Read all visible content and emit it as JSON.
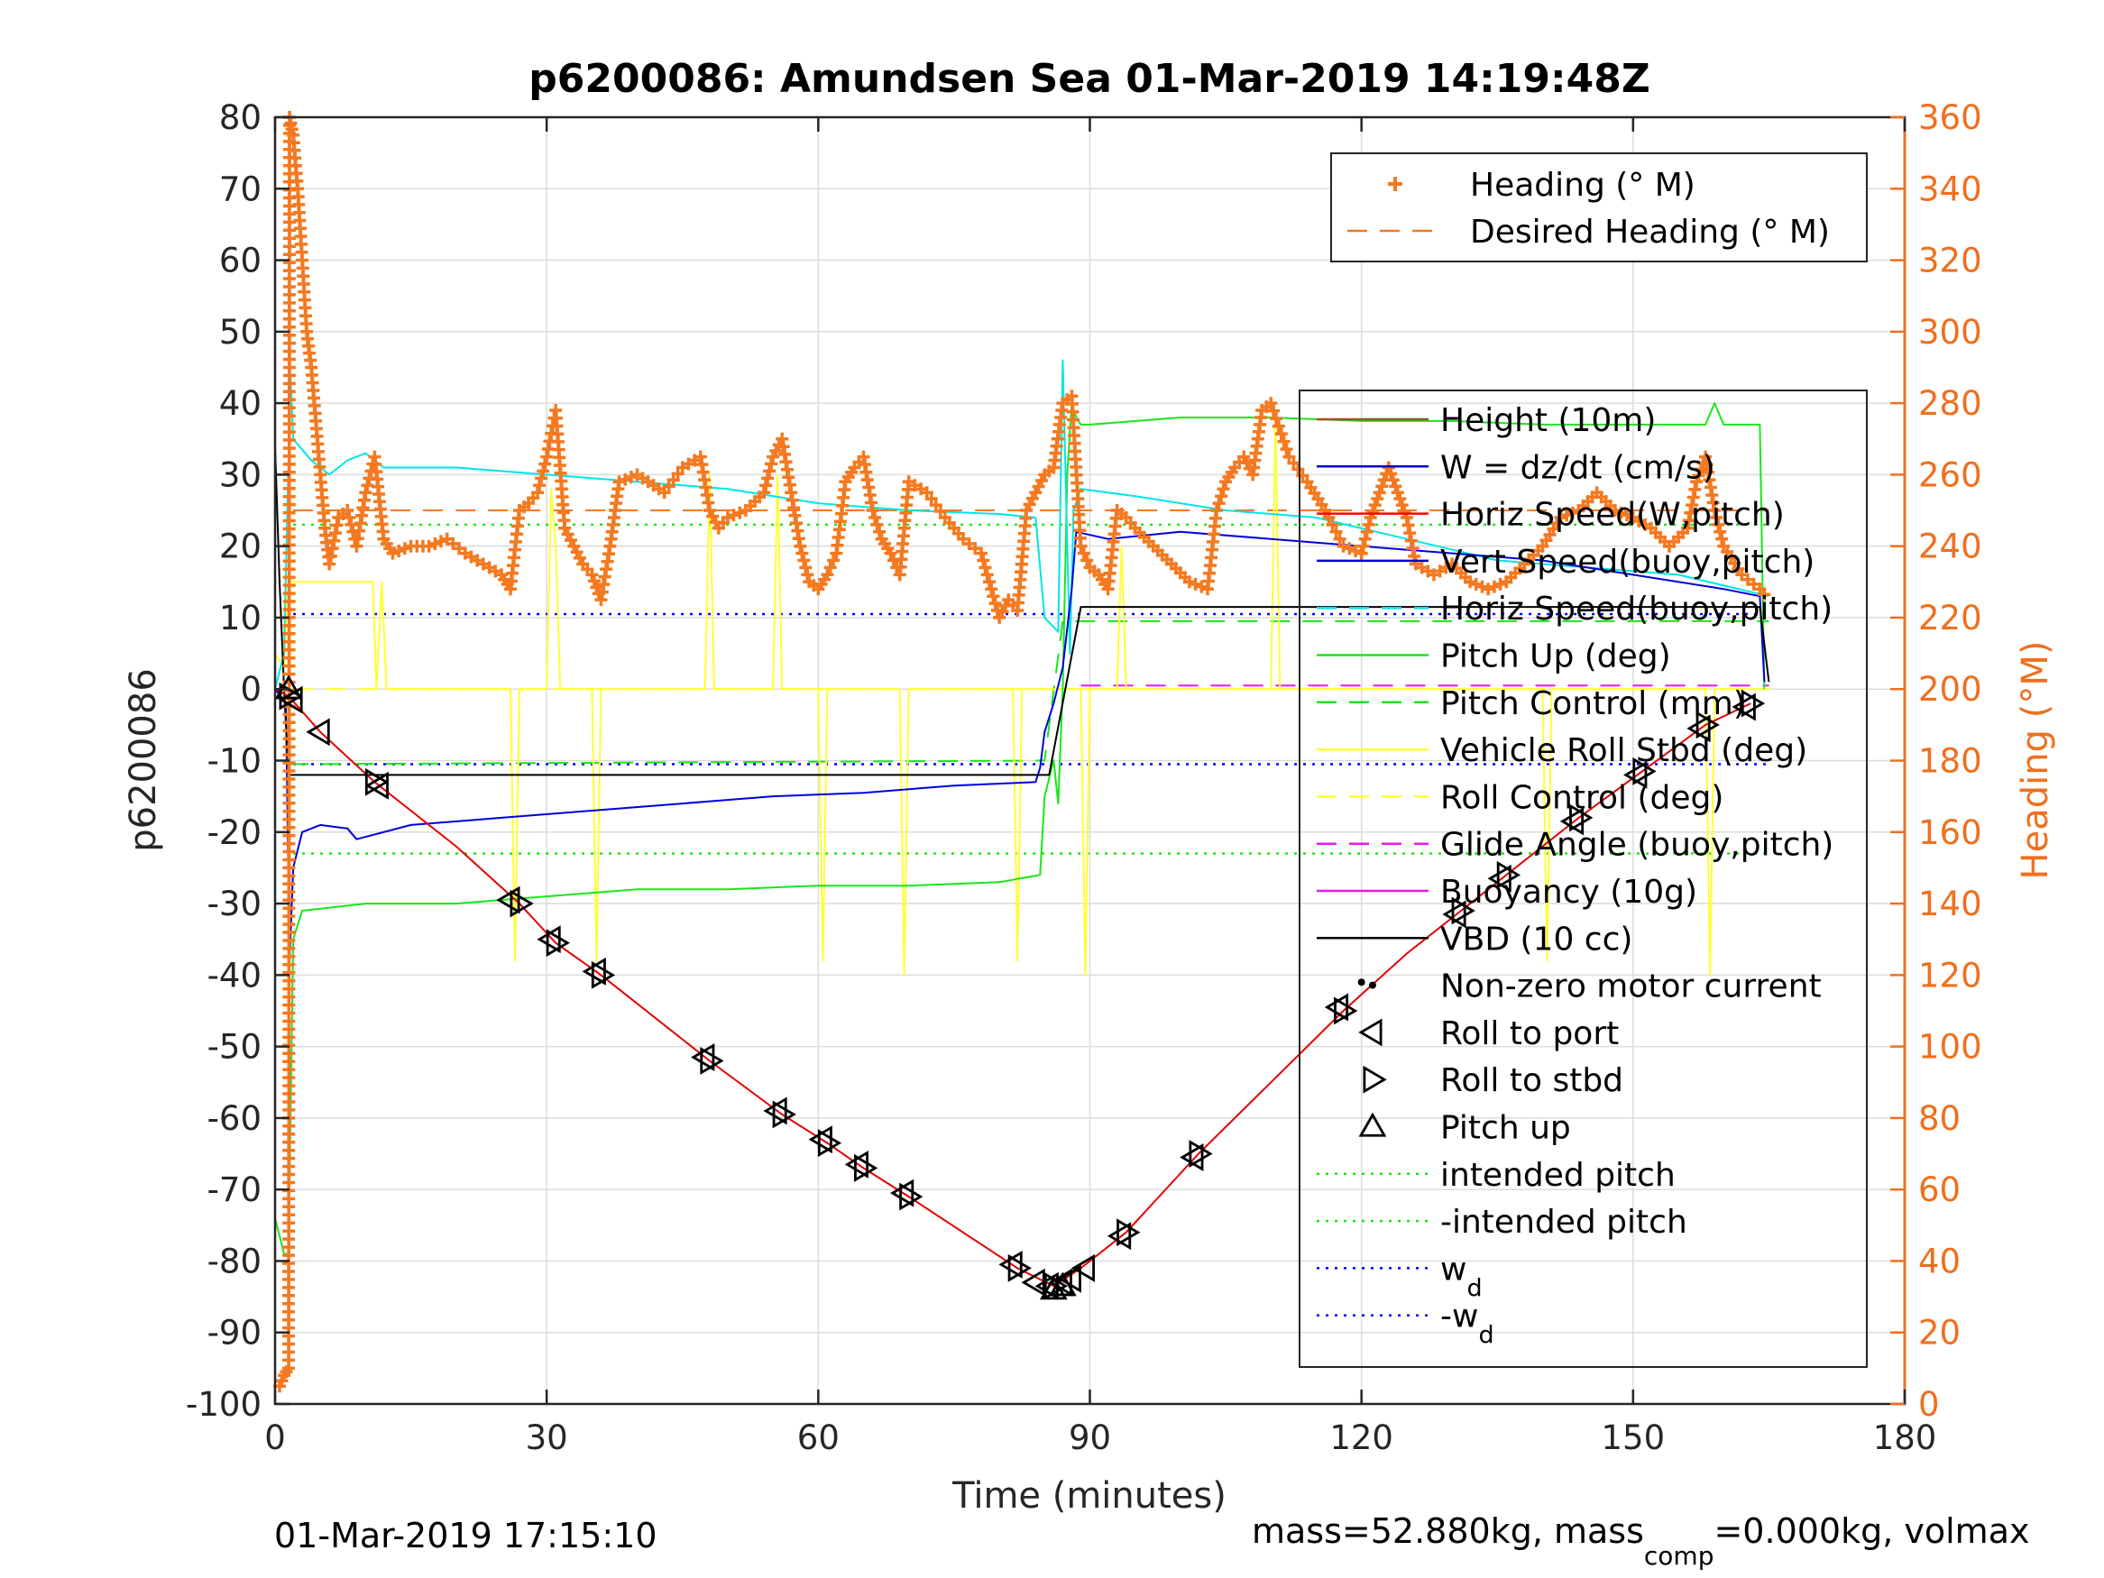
{
  "chart_data": {
    "type": "line",
    "title": "p6200086: Amundsen Sea 01-Mar-2019 14:19:48Z",
    "xlabel": "Time (minutes)",
    "ylabel": "p6200086",
    "ylabel_right": "Heading (°M)",
    "xlim": [
      0,
      180
    ],
    "ylim": [
      -100,
      80
    ],
    "ylim_right": [
      0,
      360
    ],
    "x_ticks": [
      0,
      30,
      60,
      90,
      120,
      150,
      180
    ],
    "y_ticks": [
      80,
      70,
      60,
      50,
      40,
      30,
      20,
      10,
      0,
      -10,
      -20,
      -30,
      -40,
      -50,
      -60,
      -70,
      -80,
      -90,
      -100
    ],
    "y_ticks_right": [
      360,
      340,
      320,
      300,
      280,
      260,
      240,
      220,
      200,
      180,
      160,
      140,
      120,
      100,
      80,
      60,
      40,
      20,
      0
    ],
    "grid": true,
    "legend_top": [
      {
        "label": "Heading (° M)",
        "color": "#f47920",
        "style": "plus"
      },
      {
        "label": "Desired Heading (° M)",
        "color": "#f47920",
        "style": "dashed"
      }
    ],
    "legend_main": [
      {
        "label": "Height (10m)",
        "color": "#a05020",
        "style": "solid"
      },
      {
        "label": "W = dz/dt (cm/s)",
        "color": "#0000cc",
        "style": "solid"
      },
      {
        "label": "Horiz Speed(W,pitch)",
        "color": "#ff0000",
        "style": "solid"
      },
      {
        "label": "Vert Speed(buoy,pitch)",
        "color": "#0000cc",
        "style": "solid"
      },
      {
        "label": "Horiz Speed(buoy,pitch)",
        "color": "#00e5e5",
        "style": "dashed"
      },
      {
        "label": "Pitch Up (deg)",
        "color": "#19e619",
        "style": "solid"
      },
      {
        "label": "Pitch Control (mm)",
        "color": "#19e619",
        "style": "dashed"
      },
      {
        "label": "Vehicle Roll Stbd (deg)",
        "color": "#ffff33",
        "style": "solid"
      },
      {
        "label": "Roll Control (deg)",
        "color": "#ffff33",
        "style": "dashed"
      },
      {
        "label": "Glide Angle (buoy,pitch)",
        "color": "#e619e6",
        "style": "dashed"
      },
      {
        "label": "Buoyancy (10g)",
        "color": "#e619e6",
        "style": "solid"
      },
      {
        "label": "VBD (10 cc)",
        "color": "#000000",
        "style": "solid"
      },
      {
        "label": "Non-zero motor current",
        "color": "#000000",
        "style": "dot"
      },
      {
        "label": "Roll to port",
        "color": "#000000",
        "style": "tri-left"
      },
      {
        "label": "Roll to stbd",
        "color": "#000000",
        "style": "tri-right"
      },
      {
        "label": "Pitch up",
        "color": "#000000",
        "style": "tri-up"
      },
      {
        "label": "intended pitch",
        "color": "#19e619",
        "style": "dotted"
      },
      {
        "label": "-intended pitch",
        "color": "#19e619",
        "style": "dotted"
      },
      {
        "label": "w",
        "sub": "d",
        "color": "#0000ff",
        "style": "dotted"
      },
      {
        "label": "-w",
        "sub": "d",
        "color": "#0000ff",
        "style": "dotted"
      }
    ],
    "series": [
      {
        "name": "Height (10m)",
        "color": "#e60000",
        "x": [
          0,
          1.5,
          5,
          11,
          20,
          27,
          31,
          36,
          48,
          56,
          61,
          65,
          70,
          82,
          86,
          89,
          94,
          102,
          110,
          118,
          125,
          131,
          136,
          144,
          151,
          158,
          163
        ],
        "y": [
          0,
          -1,
          -6,
          -13,
          -22,
          -30,
          -35.5,
          -40,
          -52,
          -59.5,
          -63.5,
          -67,
          -71,
          -81,
          -83.5,
          -81,
          -76,
          -65,
          -55,
          -45,
          -37,
          -31,
          -26,
          -18,
          -11.5,
          -5,
          -2
        ]
      },
      {
        "name": "W = dz/dt (cm/s)",
        "color": "#0000dd",
        "x": [
          0,
          1.2,
          1.6,
          2,
          3,
          5,
          8,
          9,
          15,
          25,
          35,
          45,
          55,
          65,
          75,
          84,
          84.5,
          85,
          86,
          87,
          88,
          88.5,
          92,
          100,
          110,
          120,
          130,
          140,
          150,
          160,
          164,
          164.5
        ],
        "y": [
          0,
          -2,
          -38,
          -25,
          -20,
          -19,
          -19.5,
          -21,
          -19,
          -18,
          -17,
          -16,
          -15,
          -14.5,
          -13.5,
          -13,
          -11,
          -6,
          -2,
          3,
          14,
          22,
          21,
          22,
          21,
          20,
          19,
          18,
          16,
          14,
          13,
          1
        ]
      },
      {
        "name": "Horiz Speed(buoy,pitch)",
        "color": "#00e5e5",
        "x": [
          0,
          1,
          1.7,
          2,
          4,
          6,
          8,
          10,
          12,
          20,
          30,
          40,
          50,
          60,
          70,
          80,
          84,
          85,
          86.5,
          87,
          87.8,
          88.2,
          89,
          95,
          105,
          115,
          125,
          135,
          145,
          155,
          165
        ],
        "y": [
          0,
          5,
          44,
          35,
          32,
          30,
          32,
          33,
          31,
          31,
          30,
          29,
          28,
          26,
          25,
          24.5,
          24,
          10,
          8,
          46,
          5,
          25,
          28,
          27,
          25,
          24,
          21,
          18,
          17,
          16,
          13
        ]
      },
      {
        "name": "Pitch Up (deg)",
        "color": "#19e619",
        "x": [
          0,
          1,
          1.5,
          1.7,
          2,
          3,
          10,
          20,
          30,
          40,
          50,
          60,
          70,
          80,
          84.5,
          85,
          86,
          86.5,
          87,
          87.5,
          88,
          88.5,
          89,
          90,
          100,
          110,
          120,
          130,
          140,
          150,
          158,
          159,
          160,
          164,
          164.5
        ],
        "y": [
          -74,
          -79,
          -79,
          -60,
          -35,
          -31,
          -30,
          -30,
          -29,
          -28,
          -28,
          -27.5,
          -27.5,
          -27,
          -26,
          -15,
          -10,
          -16,
          0,
          30,
          40,
          38,
          37,
          37,
          38,
          38,
          37.5,
          37.5,
          37,
          37,
          37,
          40,
          37,
          37,
          0
        ]
      },
      {
        "name": "Vehicle Roll Stbd (deg)",
        "color": "#ffff33",
        "x": [
          0,
          1,
          1.5,
          2,
          3,
          5,
          10,
          10.8,
          11.2,
          11.8,
          12.3,
          20,
          26,
          26.5,
          27,
          27.5,
          30,
          30.5,
          31,
          31.5,
          35,
          35.5,
          36,
          36.5,
          45,
          47.5,
          48,
          48.5,
          55,
          55.5,
          56,
          56.5,
          60,
          60.5,
          61,
          61.5,
          69,
          69.5,
          70,
          70.5,
          80,
          81.5,
          82,
          82.5,
          83,
          85,
          86,
          87,
          89,
          89.5,
          90,
          93,
          93.5,
          94,
          94.5,
          110,
          110.5,
          111,
          111.5,
          140,
          140.5,
          141,
          141.5,
          158,
          158.5,
          159,
          159.5,
          164,
          165
        ],
        "y": [
          5,
          3,
          16,
          15,
          15,
          15,
          15,
          15,
          0,
          15,
          0,
          0,
          0,
          -38,
          0,
          0,
          0,
          28,
          20,
          0,
          0,
          -38,
          0,
          0,
          0,
          0,
          30,
          0,
          0,
          30,
          0,
          0,
          0,
          -38,
          0,
          0,
          0,
          -40,
          0,
          0,
          0,
          0,
          -38,
          0,
          0,
          0,
          0,
          0,
          0,
          -40,
          0,
          0,
          20,
          0,
          0,
          0,
          38,
          0,
          0,
          0,
          -38,
          0,
          0,
          0,
          -40,
          0,
          0,
          0,
          0
        ]
      },
      {
        "name": "VBD (10 cc)",
        "color": "#000000",
        "x": [
          0,
          0.5,
          1,
          1.5,
          2,
          4,
          20,
          40,
          60,
          80,
          85.5,
          89,
          92,
          110,
          130,
          150,
          164,
          165
        ],
        "y": [
          34,
          15,
          0,
          -12,
          -12,
          -12,
          -12,
          -12,
          -12,
          -12,
          -12,
          11.5,
          11.5,
          11.5,
          11.5,
          11.5,
          11.5,
          1
        ]
      },
      {
        "name": "Glide Angle (buoy,pitch)",
        "color": "#e619e6",
        "x": [
          89,
          165
        ],
        "y": [
          0.5,
          0.5
        ]
      },
      {
        "name": "Pitch Control (mm)",
        "color": "#19e619",
        "x": [
          1.5,
          85,
          87,
          165
        ],
        "y": [
          -10.5,
          -10,
          9.5,
          9.5
        ]
      },
      {
        "name": "Roll Control (deg)",
        "color": "#ffff33",
        "x": [
          2,
          165
        ],
        "y": [
          0,
          0
        ]
      }
    ],
    "reference_lines": [
      {
        "name": "intended pitch",
        "y": 23,
        "color": "#19e619"
      },
      {
        "name": "-intended pitch",
        "y": -23,
        "color": "#19e619"
      },
      {
        "name": "wd",
        "y": 10.5,
        "color": "#0000ff"
      },
      {
        "name": "-wd",
        "y": -10.5,
        "color": "#0000ff"
      }
    ],
    "desired_heading_right": 250,
    "heading_right": {
      "x": [
        0.5,
        1,
        1.5,
        1.6,
        2,
        2.5,
        3,
        3.5,
        4,
        4.5,
        5,
        5.5,
        6,
        7,
        8,
        9,
        10,
        11,
        12,
        13,
        15,
        17,
        19,
        21,
        23,
        25,
        26,
        27,
        28,
        29,
        30,
        31,
        32,
        33,
        34,
        35,
        36,
        37,
        38,
        40,
        43,
        45,
        47,
        48,
        49,
        50,
        52,
        54,
        55,
        56,
        57,
        58,
        59,
        60,
        61,
        62,
        63,
        64,
        65,
        66,
        67,
        68,
        69,
        70,
        72,
        74,
        76,
        78,
        80,
        81,
        82,
        83,
        84,
        85,
        86,
        87,
        88,
        89,
        90,
        91,
        92,
        93,
        94,
        95,
        97,
        99,
        101,
        103,
        104,
        105,
        106,
        107,
        108,
        109,
        110,
        112,
        114,
        116,
        118,
        120,
        121,
        122,
        123,
        124,
        125,
        126,
        128,
        130,
        132,
        134,
        136,
        138,
        140,
        142,
        144,
        146,
        148,
        150,
        152,
        154,
        156,
        157,
        158,
        159,
        160,
        162,
        164,
        165
      ],
      "y": [
        5,
        8,
        10,
        360,
        355,
        340,
        320,
        300,
        290,
        275,
        260,
        245,
        235,
        248,
        250,
        240,
        255,
        265,
        242,
        238,
        240,
        240,
        242,
        238,
        235,
        232,
        228,
        250,
        252,
        255,
        265,
        278,
        245,
        240,
        235,
        232,
        225,
        240,
        258,
        260,
        255,
        262,
        265,
        250,
        245,
        248,
        250,
        255,
        265,
        270,
        255,
        240,
        230,
        228,
        232,
        238,
        258,
        262,
        265,
        250,
        242,
        238,
        232,
        258,
        255,
        248,
        242,
        238,
        220,
        225,
        222,
        250,
        255,
        260,
        262,
        280,
        282,
        240,
        234,
        232,
        228,
        250,
        248,
        245,
        240,
        235,
        230,
        228,
        250,
        258,
        262,
        265,
        260,
        278,
        280,
        265,
        258,
        250,
        240,
        238,
        248,
        255,
        262,
        255,
        248,
        235,
        232,
        235,
        230,
        228,
        230,
        235,
        240,
        248,
        250,
        255,
        250,
        248,
        245,
        240,
        245,
        258,
        265,
        250,
        240,
        232,
        228,
        225
      ]
    },
    "markers": {
      "tri_right": [
        [
          1.5,
          -1
        ],
        [
          11,
          -13
        ],
        [
          27,
          -30
        ],
        [
          31,
          -35.5
        ],
        [
          36,
          -40
        ],
        [
          48,
          -52
        ],
        [
          56,
          -59.5
        ],
        [
          61,
          -63.5
        ],
        [
          65,
          -67
        ],
        [
          70,
          -71
        ],
        [
          82,
          -81
        ],
        [
          86,
          -83.5
        ],
        [
          94,
          -76
        ],
        [
          102,
          -65
        ],
        [
          118,
          -45
        ],
        [
          131,
          -31
        ],
        [
          136,
          -26
        ],
        [
          144,
          -18
        ],
        [
          151,
          -11.5
        ],
        [
          158,
          -5
        ],
        [
          163,
          -2
        ]
      ],
      "tri_left": [
        [
          2,
          -1.5
        ],
        [
          5,
          -6
        ],
        [
          11.5,
          -13.5
        ],
        [
          26,
          -29.5
        ],
        [
          30.5,
          -35
        ],
        [
          35.5,
          -39.5
        ],
        [
          47.5,
          -51.5
        ],
        [
          55.5,
          -59
        ],
        [
          60.5,
          -63
        ],
        [
          64.5,
          -66.5
        ],
        [
          69.5,
          -70.5
        ],
        [
          81.5,
          -80.5
        ],
        [
          84,
          -83
        ],
        [
          85.5,
          -83.5
        ],
        [
          87,
          -83
        ],
        [
          88,
          -82.5
        ],
        [
          89.5,
          -81
        ],
        [
          93.5,
          -76.5
        ],
        [
          101.5,
          -65.5
        ],
        [
          117.5,
          -44.5
        ],
        [
          130.5,
          -31.5
        ],
        [
          135.5,
          -26.5
        ],
        [
          143.5,
          -18.5
        ],
        [
          150.5,
          -12
        ],
        [
          157.5,
          -5.5
        ],
        [
          162.5,
          -2.5
        ]
      ],
      "tri_up": [
        [
          1.5,
          0
        ],
        [
          86,
          -84
        ],
        [
          87,
          -83.5
        ]
      ],
      "motor_dot": [
        [
          120,
          -41
        ]
      ]
    }
  },
  "footer": {
    "timestamp": "01-Mar-2019 17:15:10",
    "mass_prefix": "mass=52.880kg, mass",
    "mass_sub": "comp",
    "mass_suffix": "=0.000kg, volmax"
  }
}
